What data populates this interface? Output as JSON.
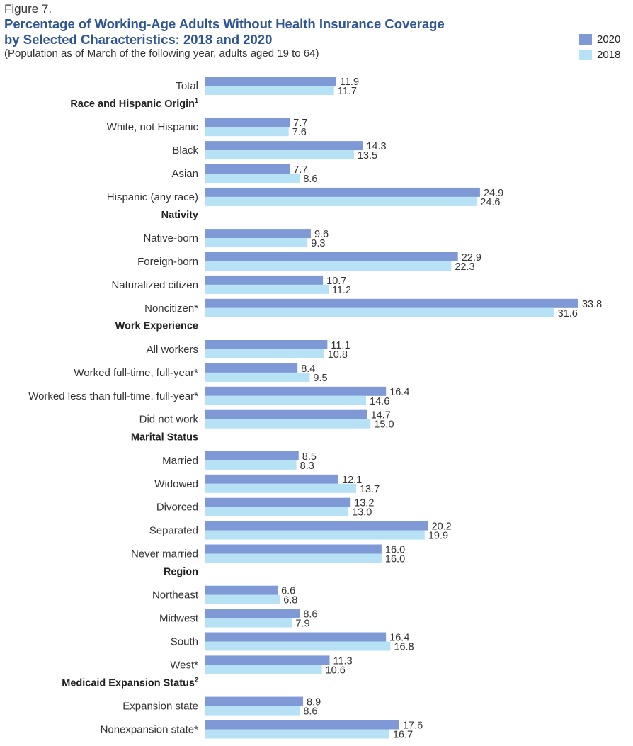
{
  "figure_label": "Figure 7.",
  "chart_data": {
    "type": "bar",
    "orientation": "horizontal",
    "title": "Percentage of Working-Age Adults Without Health Insurance Coverage by Selected Characteristics: 2018 and 2020",
    "title_lines": [
      "Percentage of Working-Age Adults Without Health Insurance Coverage",
      "by Selected Characteristics: 2018 and 2020"
    ],
    "subtitle": "(Population as of March of the following year, adults aged 19 to 64)",
    "legend_position": "top-right",
    "grid": false,
    "xlim": [
      0,
      40
    ],
    "series": [
      {
        "name": "2020",
        "color": "#7e99d6"
      },
      {
        "name": "2018",
        "color": "#b7e1f5"
      }
    ],
    "rows": [
      {
        "kind": "item",
        "label": "Total",
        "values": [
          11.9,
          11.7
        ],
        "labels": [
          "11.9",
          "11.7"
        ]
      },
      {
        "kind": "group",
        "label": "Race and Hispanic Origin",
        "sup": "1"
      },
      {
        "kind": "item",
        "label": "White, not Hispanic",
        "values": [
          7.7,
          7.6
        ],
        "labels": [
          "7.7",
          "7.6"
        ]
      },
      {
        "kind": "item",
        "label": "Black",
        "values": [
          14.3,
          13.5
        ],
        "labels": [
          "14.3",
          "13.5"
        ]
      },
      {
        "kind": "item",
        "label": "Asian",
        "values": [
          7.7,
          8.6
        ],
        "labels": [
          "7.7",
          "8.6"
        ]
      },
      {
        "kind": "item",
        "label": "Hispanic (any race)",
        "values": [
          24.9,
          24.6
        ],
        "labels": [
          "24.9",
          "24.6"
        ]
      },
      {
        "kind": "group",
        "label": "Nativity"
      },
      {
        "kind": "item",
        "label": "Native-born",
        "values": [
          9.6,
          9.3
        ],
        "labels": [
          "9.6",
          "9.3"
        ]
      },
      {
        "kind": "item",
        "label": "Foreign-born",
        "values": [
          22.9,
          22.3
        ],
        "labels": [
          "22.9",
          "22.3"
        ]
      },
      {
        "kind": "item",
        "label": "Naturalized citizen",
        "values": [
          10.7,
          11.2
        ],
        "labels": [
          "10.7",
          "11.2"
        ]
      },
      {
        "kind": "item",
        "label": "Noncitizen*",
        "values": [
          33.8,
          31.6
        ],
        "labels": [
          "33.8",
          "31.6"
        ]
      },
      {
        "kind": "group",
        "label": "Work Experience"
      },
      {
        "kind": "item",
        "label": "All workers",
        "values": [
          11.1,
          10.8
        ],
        "labels": [
          "11.1",
          "10.8"
        ]
      },
      {
        "kind": "item",
        "label": "Worked full-time, full-year*",
        "values": [
          8.4,
          9.5
        ],
        "labels": [
          "8.4",
          "9.5"
        ]
      },
      {
        "kind": "item",
        "label": "Worked less than full-time, full-year*",
        "values": [
          16.4,
          14.6
        ],
        "labels": [
          "16.4",
          "14.6"
        ]
      },
      {
        "kind": "item",
        "label": "Did not work",
        "values": [
          14.7,
          15.0
        ],
        "labels": [
          "14.7",
          "15.0"
        ]
      },
      {
        "kind": "group",
        "label": "Marital Status"
      },
      {
        "kind": "item",
        "label": "Married",
        "values": [
          8.5,
          8.3
        ],
        "labels": [
          "8.5",
          "8.3"
        ]
      },
      {
        "kind": "item",
        "label": "Widowed",
        "values": [
          12.1,
          13.7
        ],
        "labels": [
          "12.1",
          "13.7"
        ]
      },
      {
        "kind": "item",
        "label": "Divorced",
        "values": [
          13.2,
          13.0
        ],
        "labels": [
          "13.2",
          "13.0"
        ]
      },
      {
        "kind": "item",
        "label": "Separated",
        "values": [
          20.2,
          19.9
        ],
        "labels": [
          "20.2",
          "19.9"
        ]
      },
      {
        "kind": "item",
        "label": "Never married",
        "values": [
          16.0,
          16.0
        ],
        "labels": [
          "16.0",
          "16.0"
        ]
      },
      {
        "kind": "group",
        "label": "Region"
      },
      {
        "kind": "item",
        "label": "Northeast",
        "values": [
          6.6,
          6.8
        ],
        "labels": [
          "6.6",
          "6.8"
        ]
      },
      {
        "kind": "item",
        "label": "Midwest",
        "values": [
          8.6,
          7.9
        ],
        "labels": [
          "8.6",
          "7.9"
        ]
      },
      {
        "kind": "item",
        "label": "South",
        "values": [
          16.4,
          16.8
        ],
        "labels": [
          "16.4",
          "16.8"
        ]
      },
      {
        "kind": "item",
        "label": "West*",
        "values": [
          11.3,
          10.6
        ],
        "labels": [
          "11.3",
          "10.6"
        ]
      },
      {
        "kind": "group",
        "label": "Medicaid Expansion Status",
        "sup": "2"
      },
      {
        "kind": "item",
        "label": "Expansion state",
        "values": [
          8.9,
          8.6
        ],
        "labels": [
          "8.9",
          "8.6"
        ]
      },
      {
        "kind": "item",
        "label": "Nonexpansion state*",
        "values": [
          17.6,
          16.7
        ],
        "labels": [
          "17.6",
          "16.7"
        ]
      }
    ]
  }
}
